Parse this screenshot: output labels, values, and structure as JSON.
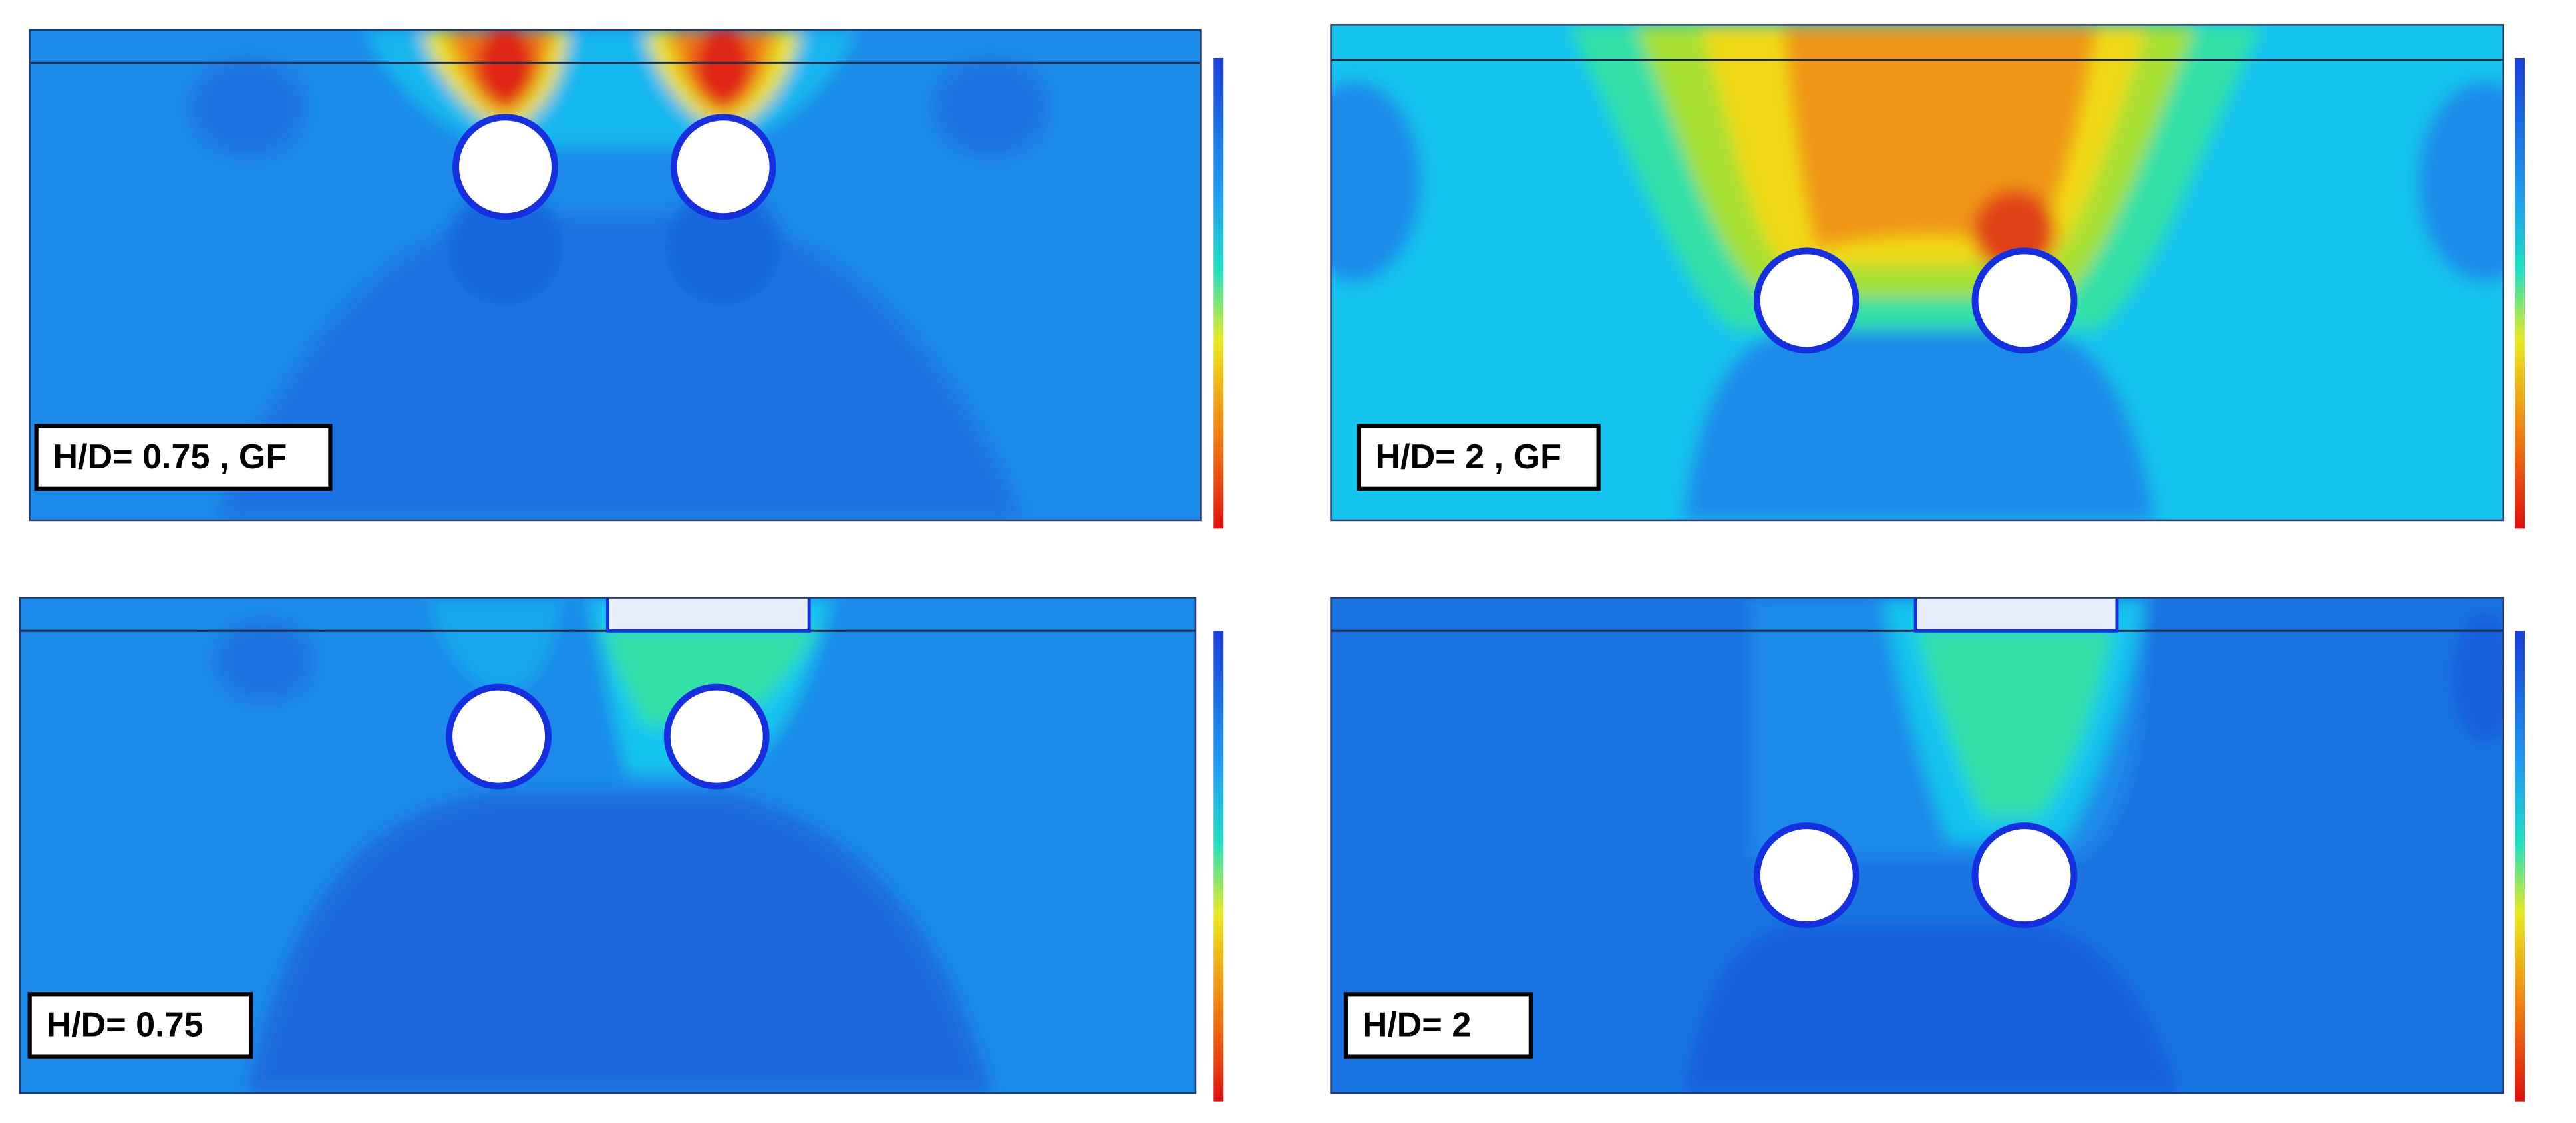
{
  "panels": [
    {
      "label": "H/D= 0.75 , GF"
    },
    {
      "label": "H/D= 2 , GF"
    },
    {
      "label": "H/D= 0.75"
    },
    {
      "label": "H/D= 2"
    }
  ]
}
